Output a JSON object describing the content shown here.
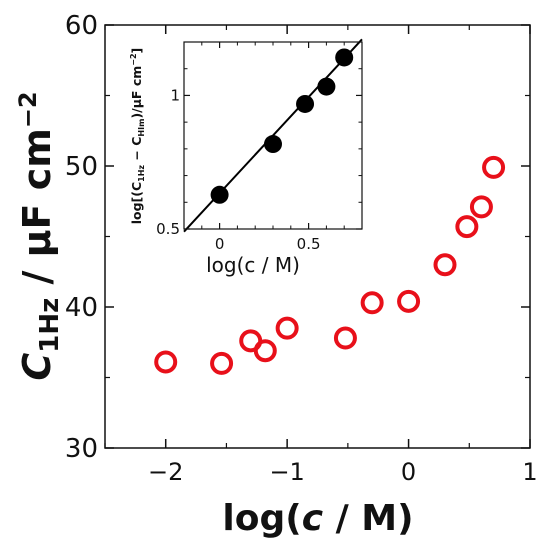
{
  "chart_data": [
    {
      "type": "scatter",
      "x_label_parts": [
        "log(",
        "c",
        " / M)"
      ],
      "y_label_parts": [
        "C",
        "1Hz",
        " / μF cm",
        "−2"
      ],
      "xlim": [
        -2.5,
        1.0
      ],
      "ylim": [
        30,
        60
      ],
      "x_ticks": [
        -2,
        -1,
        0,
        1
      ],
      "x_tick_labels": [
        "−2",
        "−1",
        "0",
        "1"
      ],
      "y_ticks": [
        30,
        40,
        50,
        60
      ],
      "y_tick_labels": [
        "30",
        "40",
        "50",
        "60"
      ],
      "grid": false,
      "series": [
        {
          "marker": "open-circle",
          "color": "#e8101a",
          "x": [
            -2.0,
            -1.54,
            -1.3,
            -1.18,
            -1.0,
            -0.52,
            -0.3,
            0.0,
            0.3,
            0.48,
            0.6,
            0.7
          ],
          "y": [
            36.1,
            36.0,
            37.6,
            36.9,
            38.5,
            37.8,
            40.3,
            40.4,
            43.0,
            45.7,
            47.1,
            49.9
          ]
        }
      ]
    },
    {
      "type": "scatter",
      "placement": "inset-top-center",
      "x_label": "log(c / M)",
      "y_label_parts": [
        "log[(C",
        "1Hz",
        " − C",
        "HIm",
        ")/μF cm",
        "−2",
        "]"
      ],
      "xlim": [
        -0.2,
        0.8
      ],
      "ylim": [
        0.5,
        1.2
      ],
      "y_scale": "linear",
      "x_ticks": [
        0,
        0.5
      ],
      "x_tick_labels": [
        "0",
        "0.5"
      ],
      "y_ticks": [
        0.5,
        1.0
      ],
      "y_tick_labels": [
        "0.5",
        "1"
      ],
      "grid": false,
      "series": [
        {
          "marker": "filled-circle",
          "color": "#000000",
          "x": [
            0.0,
            0.3,
            0.48,
            0.6,
            0.7
          ],
          "y": [
            0.628,
            0.818,
            0.968,
            1.033,
            1.142
          ]
        }
      ],
      "fit_line": {
        "x": [
          -0.2,
          0.8
        ],
        "y": [
          0.49,
          1.21
        ]
      }
    }
  ]
}
